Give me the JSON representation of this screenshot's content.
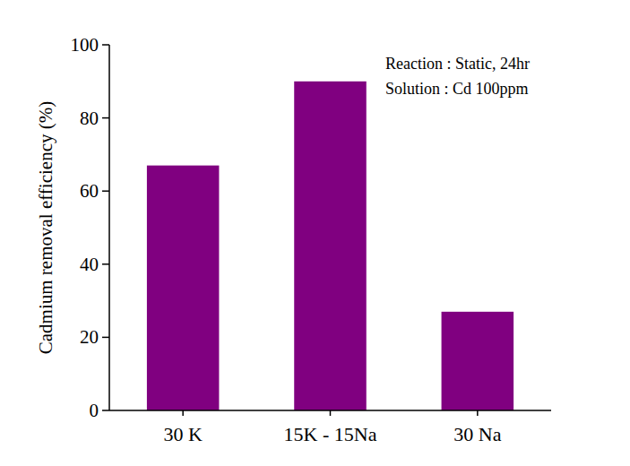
{
  "chart_data": {
    "type": "bar",
    "y_label": "Cadmium removal efficiency (%)",
    "annotations": [
      "Reaction : Static, 24hr",
      "Solution : Cd 100ppm"
    ],
    "categories": [
      "30 K",
      "15K - 15Na",
      "30 Na"
    ],
    "values": [
      67,
      90,
      27
    ],
    "color": "#800080",
    "ylim": [
      0,
      100
    ],
    "yticks": [
      0,
      20,
      40,
      60,
      80,
      100
    ],
    "grid": false
  }
}
